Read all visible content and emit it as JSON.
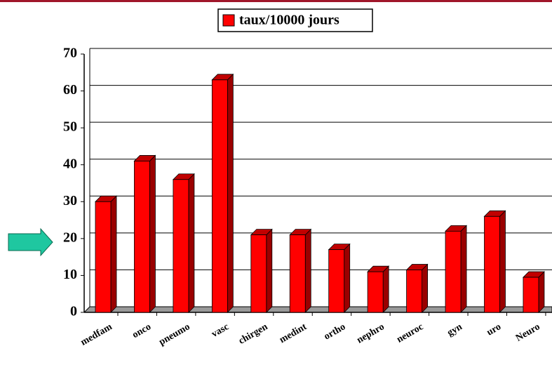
{
  "chart_data": {
    "type": "bar",
    "categories": [
      "medfam",
      "onco",
      "pneumo",
      "vasc",
      "chirgen",
      "medint",
      "ortho",
      "nephro",
      "neuroc",
      "gyn",
      "uro",
      "Neuro"
    ],
    "series": [
      {
        "name": "taux/10000 jours",
        "color": "#ff0000",
        "values": [
          30,
          41,
          36,
          63,
          21,
          21,
          17,
          11,
          11.5,
          22,
          26,
          9.5
        ]
      }
    ],
    "ylim": [
      0,
      70
    ],
    "yticks": [
      0,
      10,
      20,
      30,
      40,
      50,
      60,
      70
    ],
    "grid": true
  }
}
